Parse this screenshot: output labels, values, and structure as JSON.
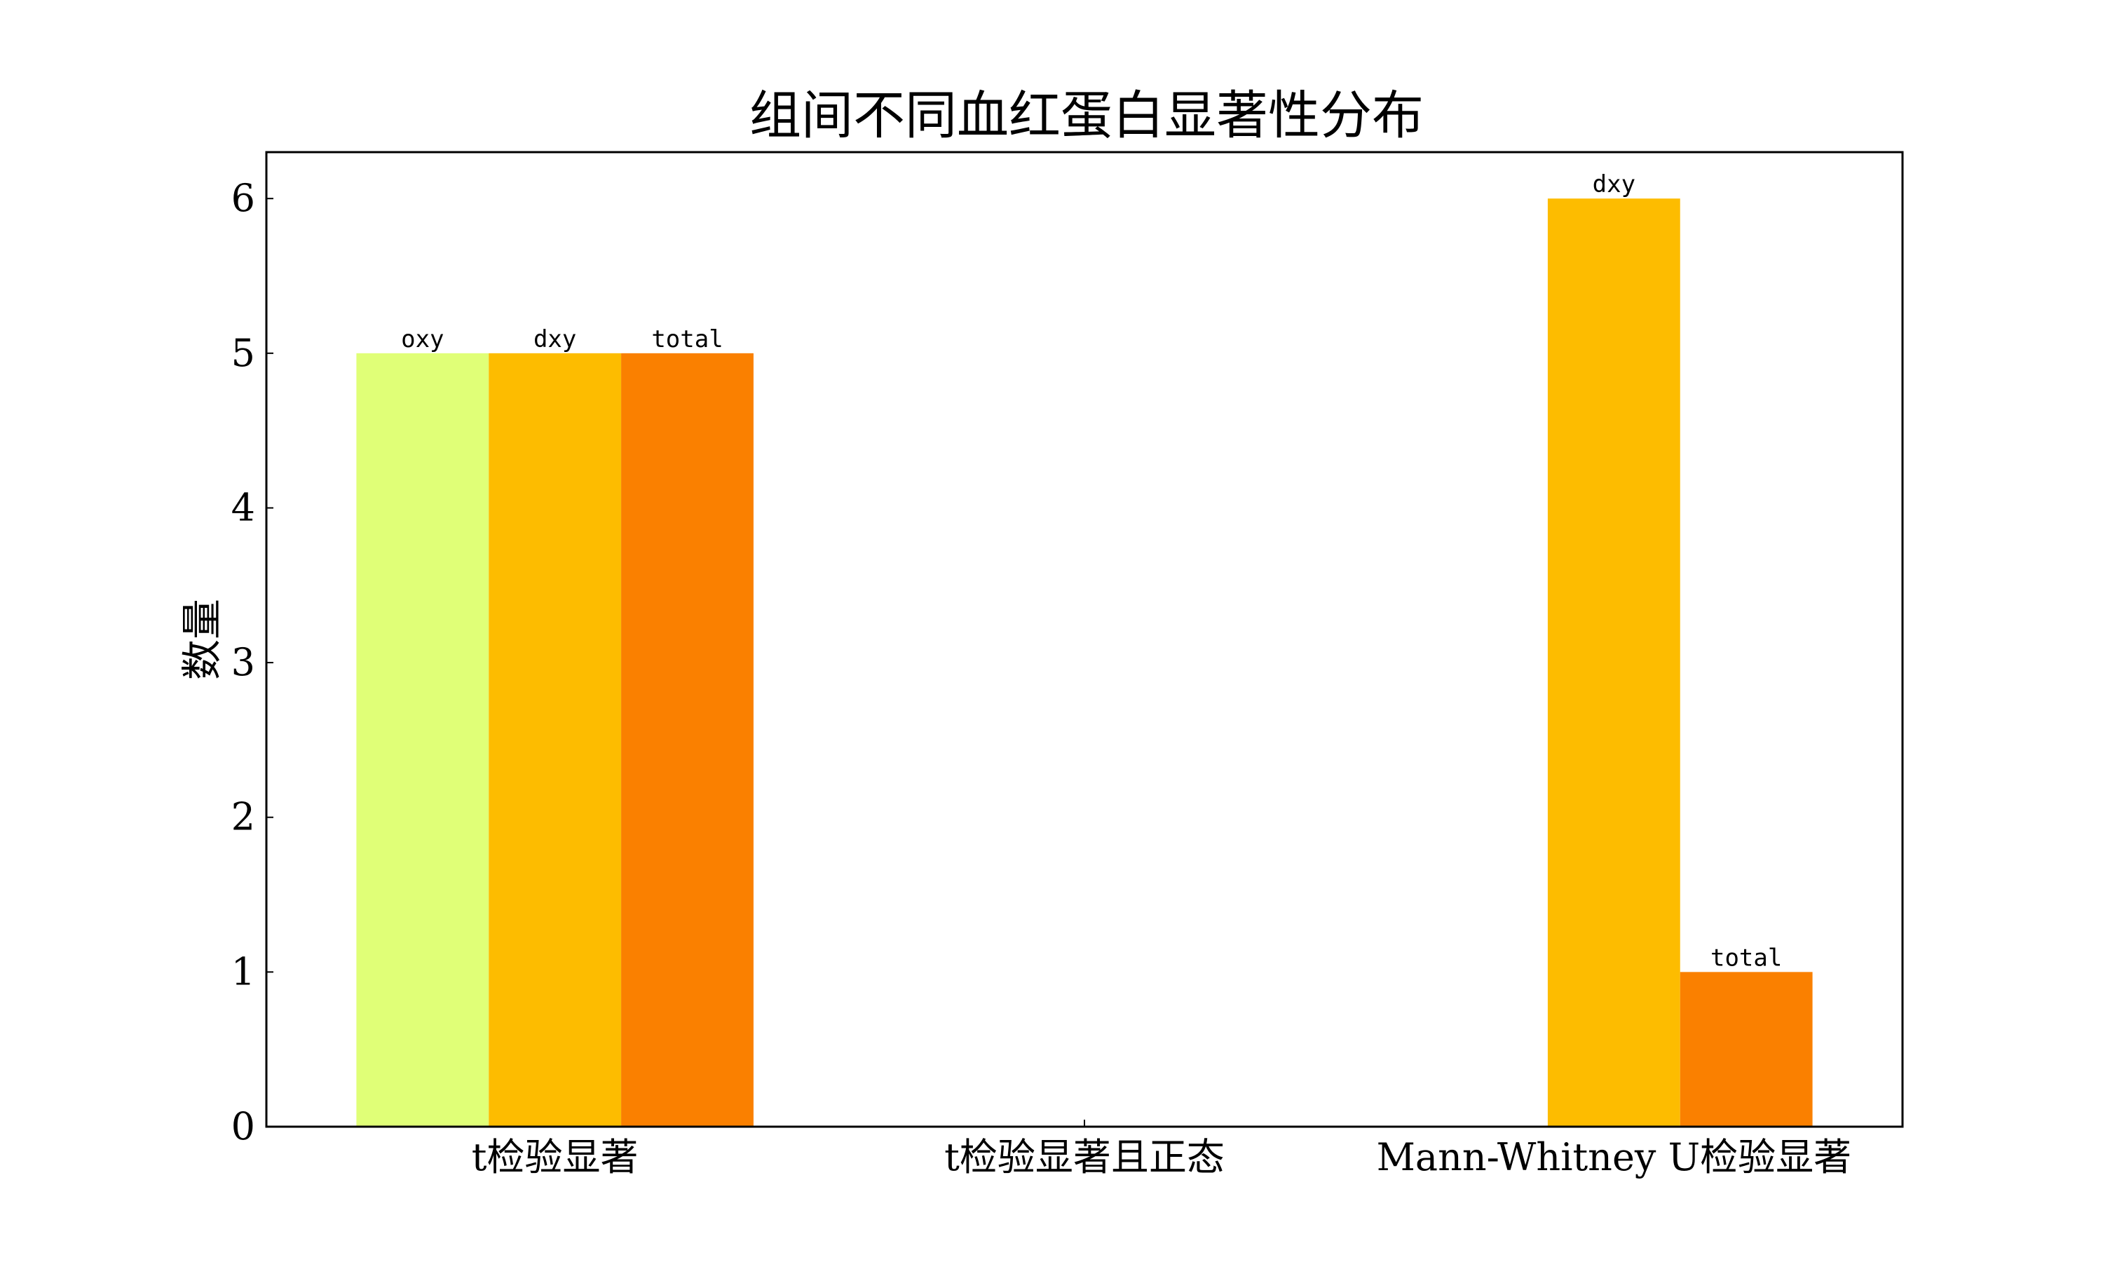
{
  "chart_data": {
    "type": "bar",
    "title": "组间不同血红蛋白显著性分布",
    "xlabel": "",
    "ylabel": "数量",
    "ylim": [
      0,
      6.3
    ],
    "yticks": [
      0,
      1,
      2,
      3,
      4,
      5,
      6
    ],
    "categories": [
      "t检验显著",
      "t检验显著且正态",
      "Mann-Whitney U检验显著"
    ],
    "series": [
      {
        "name": "oxy",
        "color": "#E0FF77",
        "values": [
          5,
          0,
          0
        ]
      },
      {
        "name": "dxy",
        "color": "#FDBC00",
        "values": [
          5,
          0,
          6
        ]
      },
      {
        "name": "total",
        "color": "#FA8000",
        "values": [
          5,
          0,
          1
        ]
      }
    ],
    "grid": false,
    "legend": "none"
  }
}
